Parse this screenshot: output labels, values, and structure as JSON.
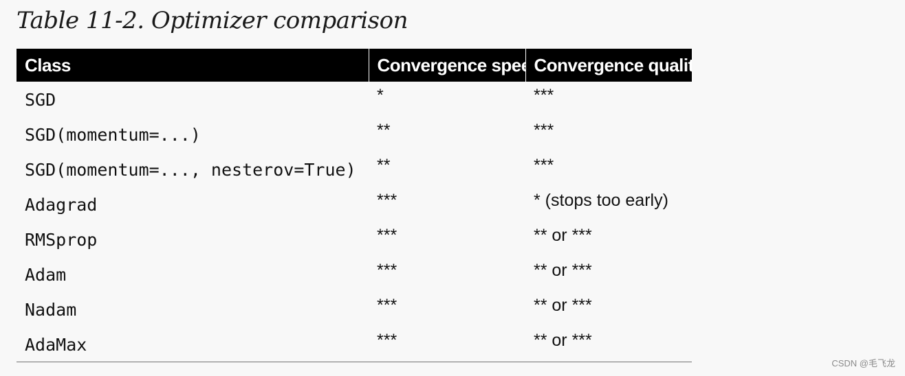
{
  "caption": "Table 11-2. Optimizer comparison",
  "table": {
    "headers": [
      "Class",
      "Convergence speed",
      "Convergence quality"
    ],
    "rows": [
      {
        "class": "SGD",
        "speed": "*",
        "quality": "***"
      },
      {
        "class": "SGD(momentum=...)",
        "speed": "**",
        "quality": "***"
      },
      {
        "class": "SGD(momentum=..., nesterov=True)",
        "speed": "**",
        "quality": "***"
      },
      {
        "class": "Adagrad",
        "speed": "***",
        "quality": "* (stops too early)"
      },
      {
        "class": "RMSprop",
        "speed": "***",
        "quality": "** or ***"
      },
      {
        "class": "Adam",
        "speed": "***",
        "quality": "** or ***"
      },
      {
        "class": "Nadam",
        "speed": "***",
        "quality": "** or ***"
      },
      {
        "class": "AdaMax",
        "speed": "***",
        "quality": "** or ***"
      }
    ]
  },
  "watermark": "CSDN @毛飞龙",
  "colors": {
    "header_background": "#000000",
    "header_text": "#ffffff",
    "body_text": "#111111",
    "page_background": "#f8f8f8"
  }
}
